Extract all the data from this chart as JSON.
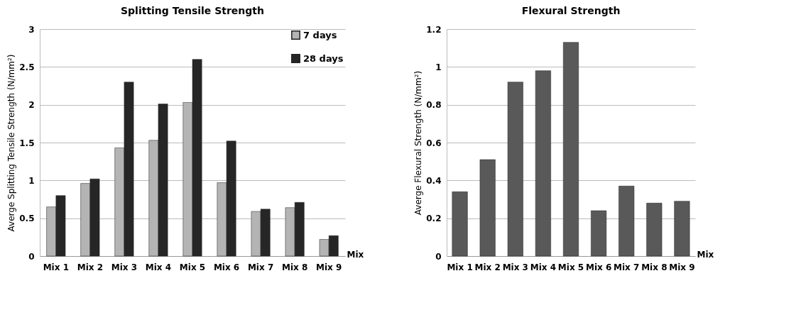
{
  "chart_data": [
    {
      "type": "bar",
      "title": "Splitting Tensile Strength",
      "xlabel": "Mix",
      "ylabel": "Averge Splitting Tensile Strength (N/mm²)",
      "categories": [
        "Mix 1",
        "Mix 2",
        "Mix 3",
        "Mix 4",
        "Mix 5",
        "Mix 6",
        "Mix 7",
        "Mix 8",
        "Mix 9"
      ],
      "series": [
        {
          "name": "7 days",
          "color": "#b4b4b4",
          "values": [
            0.65,
            0.96,
            1.43,
            1.53,
            2.03,
            0.97,
            0.59,
            0.64,
            0.22
          ]
        },
        {
          "name": "28 days",
          "color": "#262626",
          "values": [
            0.8,
            1.02,
            2.3,
            2.01,
            2.6,
            1.52,
            0.62,
            0.71,
            0.27
          ]
        }
      ],
      "ylim": [
        0,
        3
      ],
      "yticks": [
        0,
        0.5,
        1,
        1.5,
        2,
        2.5,
        3
      ],
      "grid": "y",
      "legend": "top right"
    },
    {
      "type": "bar",
      "title": "Flexural Strength",
      "xlabel": "Mix",
      "ylabel": "Averge Flexural Strength (N/mm²)",
      "categories": [
        "Mix 1",
        "Mix 2",
        "Mix 3",
        "Mix 4",
        "Mix 5",
        "Mix 6",
        "Mix 7",
        "Mix 8",
        "Mix 9"
      ],
      "series": [
        {
          "color": "#595959",
          "values": [
            0.34,
            0.51,
            0.92,
            0.98,
            1.13,
            0.24,
            0.37,
            0.28,
            0.29
          ]
        }
      ],
      "ylim": [
        0,
        1.2
      ],
      "yticks": [
        0,
        0.2,
        0.4,
        0.6,
        0.8,
        1,
        1.2
      ],
      "grid": "y"
    }
  ]
}
